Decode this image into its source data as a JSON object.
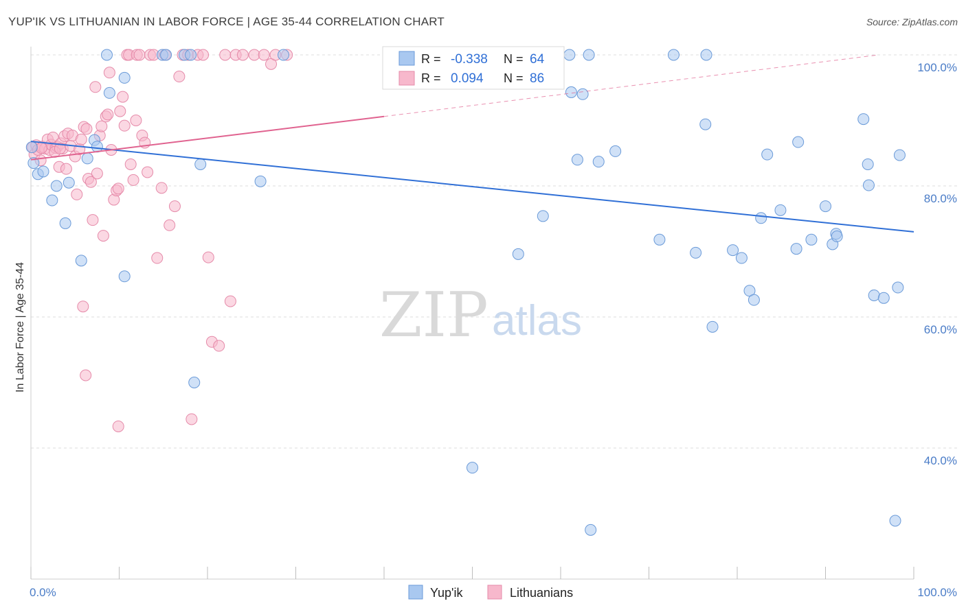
{
  "title": "YUP'IK VS LITHUANIAN IN LABOR FORCE | AGE 35-44 CORRELATION CHART",
  "source": "Source: ZipAtlas.com",
  "colors": {
    "blue_fill": "#a9c8f0",
    "blue_stroke": "#6a9ad8",
    "blue_line": "#2f6fd6",
    "pink_fill": "#f7b8cc",
    "pink_stroke": "#e58aa9",
    "pink_line": "#e0628f",
    "grid": "#dcdcdc",
    "tick_text": "#4a7cc7"
  },
  "legend": {
    "r_label": "R =",
    "n_label": "N =",
    "rows": [
      {
        "r": "-0.338",
        "n": "64"
      },
      {
        "r": "0.094",
        "n": "86"
      }
    ]
  },
  "watermark": {
    "part1": "ZIP",
    "part2": "atlas"
  },
  "chart_data": {
    "type": "scatter",
    "xlabel": "",
    "ylabel": "In Labor Force | Age 35-44",
    "xlim": [
      0,
      100
    ],
    "ylim": [
      20,
      104
    ],
    "x_tick_labels": [
      "0.0%",
      "100.0%"
    ],
    "y_ticks": [
      40,
      60,
      80,
      100
    ],
    "y_tick_labels": [
      "40.0%",
      "60.0%",
      "80.0%",
      "100.0%"
    ],
    "grid": true,
    "legend_position": "top-center",
    "series": [
      {
        "name": "Yup'ik",
        "points": [
          [
            0.3,
            83.5
          ],
          [
            0.8,
            81.8
          ],
          [
            1.4,
            82.2
          ],
          [
            2.4,
            77.8
          ],
          [
            2.9,
            80.0
          ],
          [
            3.9,
            74.3
          ],
          [
            4.3,
            80.5
          ],
          [
            5.7,
            68.6
          ],
          [
            6.4,
            84.2
          ],
          [
            7.2,
            87.0
          ],
          [
            7.5,
            86.0
          ],
          [
            8.6,
            100.0
          ],
          [
            8.9,
            94.2
          ],
          [
            10.6,
            96.5
          ],
          [
            10.6,
            66.2
          ],
          [
            14.9,
            100.0
          ],
          [
            15.3,
            100.0
          ],
          [
            17.4,
            100.0
          ],
          [
            18.1,
            100.0
          ],
          [
            18.5,
            50.0
          ],
          [
            19.2,
            83.3
          ],
          [
            26.0,
            80.7
          ],
          [
            28.6,
            100.0
          ],
          [
            41.4,
            100.0
          ],
          [
            50.0,
            37.0
          ],
          [
            55.2,
            69.6
          ],
          [
            58.0,
            75.4
          ],
          [
            61.0,
            100.0
          ],
          [
            61.2,
            94.3
          ],
          [
            61.9,
            84.0
          ],
          [
            62.5,
            94.0
          ],
          [
            63.4,
            27.5
          ],
          [
            63.2,
            100.0
          ],
          [
            64.3,
            83.7
          ],
          [
            66.2,
            85.3
          ],
          [
            71.2,
            71.8
          ],
          [
            72.8,
            100.0
          ],
          [
            75.3,
            69.8
          ],
          [
            76.4,
            89.4
          ],
          [
            76.5,
            100.0
          ],
          [
            77.2,
            58.5
          ],
          [
            79.5,
            70.2
          ],
          [
            80.5,
            69.0
          ],
          [
            81.4,
            64.0
          ],
          [
            81.9,
            62.6
          ],
          [
            82.7,
            75.1
          ],
          [
            83.4,
            84.8
          ],
          [
            84.9,
            76.3
          ],
          [
            86.7,
            70.4
          ],
          [
            86.9,
            86.7
          ],
          [
            88.4,
            71.8
          ],
          [
            90.0,
            76.9
          ],
          [
            90.8,
            71.1
          ],
          [
            91.2,
            72.7
          ],
          [
            91.3,
            72.3
          ],
          [
            94.3,
            90.2
          ],
          [
            94.8,
            83.3
          ],
          [
            94.9,
            80.1
          ],
          [
            95.5,
            63.3
          ],
          [
            96.6,
            62.9
          ],
          [
            97.9,
            28.9
          ],
          [
            98.2,
            64.5
          ],
          [
            98.4,
            84.7
          ],
          [
            0.1,
            85.9
          ]
        ]
      },
      {
        "name": "Lithuanians",
        "points": [
          [
            0.2,
            85.9
          ],
          [
            0.4,
            84.8
          ],
          [
            0.6,
            86.2
          ],
          [
            0.8,
            85.5
          ],
          [
            1.1,
            83.9
          ],
          [
            1.3,
            86.0
          ],
          [
            1.6,
            85.7
          ],
          [
            1.9,
            87.1
          ],
          [
            2.1,
            85.5
          ],
          [
            2.3,
            86.3
          ],
          [
            2.5,
            87.4
          ],
          [
            2.8,
            85.8
          ],
          [
            3.0,
            86.0
          ],
          [
            3.2,
            82.9
          ],
          [
            3.4,
            86.5
          ],
          [
            3.6,
            85.7
          ],
          [
            3.8,
            87.6
          ],
          [
            4.0,
            82.6
          ],
          [
            4.2,
            88.0
          ],
          [
            4.5,
            86.1
          ],
          [
            4.7,
            87.7
          ],
          [
            5.0,
            84.5
          ],
          [
            5.2,
            78.7
          ],
          [
            5.5,
            85.6
          ],
          [
            5.7,
            87.1
          ],
          [
            6.0,
            89.0
          ],
          [
            6.3,
            88.7
          ],
          [
            6.5,
            81.1
          ],
          [
            6.8,
            80.6
          ],
          [
            7.0,
            74.8
          ],
          [
            7.3,
            95.1
          ],
          [
            7.5,
            81.9
          ],
          [
            7.8,
            87.7
          ],
          [
            8.0,
            89.1
          ],
          [
            8.2,
            72.4
          ],
          [
            8.5,
            90.6
          ],
          [
            8.7,
            90.9
          ],
          [
            8.9,
            97.3
          ],
          [
            9.1,
            85.5
          ],
          [
            9.4,
            77.9
          ],
          [
            9.7,
            79.3
          ],
          [
            9.9,
            79.6
          ],
          [
            10.1,
            91.4
          ],
          [
            10.4,
            93.6
          ],
          [
            10.6,
            89.2
          ],
          [
            10.9,
            100.0
          ],
          [
            11.1,
            100.0
          ],
          [
            11.3,
            83.3
          ],
          [
            11.6,
            80.9
          ],
          [
            11.9,
            90.0
          ],
          [
            12.0,
            100.0
          ],
          [
            12.3,
            100.0
          ],
          [
            12.6,
            87.7
          ],
          [
            12.9,
            86.6
          ],
          [
            13.2,
            82.1
          ],
          [
            13.5,
            100.0
          ],
          [
            13.9,
            100.0
          ],
          [
            14.3,
            69.0
          ],
          [
            14.8,
            79.7
          ],
          [
            15.2,
            100.0
          ],
          [
            15.7,
            74.0
          ],
          [
            16.3,
            76.9
          ],
          [
            16.8,
            96.7
          ],
          [
            17.2,
            100.0
          ],
          [
            17.8,
            100.0
          ],
          [
            18.2,
            44.4
          ],
          [
            18.9,
            100.0
          ],
          [
            19.5,
            100.0
          ],
          [
            20.1,
            69.1
          ],
          [
            20.5,
            56.2
          ],
          [
            21.3,
            55.6
          ],
          [
            22.0,
            100.0
          ],
          [
            22.6,
            62.4
          ],
          [
            23.2,
            100.0
          ],
          [
            24.0,
            100.0
          ],
          [
            25.3,
            100.0
          ],
          [
            26.4,
            100.0
          ],
          [
            27.2,
            98.6
          ],
          [
            27.7,
            100.0
          ],
          [
            29.0,
            100.0
          ],
          [
            5.9,
            61.6
          ],
          [
            6.2,
            51.1
          ],
          [
            9.9,
            43.3
          ],
          [
            1.2,
            85.8
          ],
          [
            2.7,
            85.2
          ],
          [
            3.3,
            85.7
          ]
        ]
      }
    ],
    "trendlines": [
      {
        "series": "Yup'ik",
        "x0": 0,
        "y0": 86.8,
        "x1": 100,
        "y1": 73.0
      },
      {
        "series": "Lithuanians",
        "x0": 0,
        "y0": 84.0,
        "x1": 40,
        "y1": 90.6,
        "dashed_to_x": 96,
        "dashed_to_y": 100.0
      }
    ]
  }
}
